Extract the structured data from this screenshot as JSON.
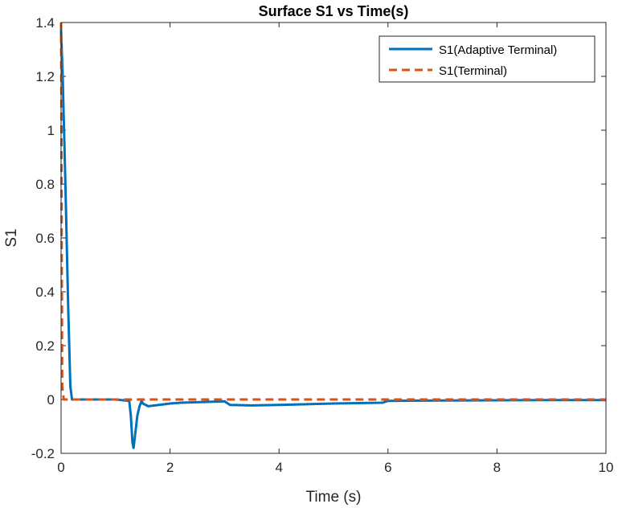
{
  "chart_data": {
    "type": "line",
    "title": "Surface S1 vs Time(s)",
    "xlabel": "Time (s)",
    "ylabel": "S1",
    "xlim": [
      0,
      10
    ],
    "ylim": [
      -0.2,
      1.4
    ],
    "xticks": [
      0,
      2,
      4,
      6,
      8,
      10
    ],
    "xtick_labels": [
      "0",
      "2",
      "4",
      "6",
      "8",
      "10"
    ],
    "yticks": [
      -0.2,
      0,
      0.2,
      0.4,
      0.6,
      0.8,
      1,
      1.2,
      1.4
    ],
    "ytick_labels": [
      "-0.2",
      "0",
      "0.2",
      "0.4",
      "0.6",
      "0.8",
      "1",
      "1.2",
      "1.4"
    ],
    "grid": false,
    "legend_position": "top-right",
    "series": [
      {
        "name": "S1(Adaptive Terminal)",
        "color": "#0072BD",
        "style": "solid",
        "x": [
          0,
          0.03,
          0.08,
          0.13,
          0.17,
          0.2,
          0.3,
          0.5,
          1.0,
          1.25,
          1.28,
          1.31,
          1.33,
          1.36,
          1.4,
          1.44,
          1.48,
          1.5,
          1.6,
          1.8,
          2.0,
          2.2,
          2.5,
          2.8,
          3.0,
          3.1,
          3.5,
          4.0,
          5.0,
          5.9,
          6.0,
          7.0,
          8.0,
          9.0,
          10.0
        ],
        "y": [
          1.37,
          1.2,
          0.8,
          0.35,
          0.05,
          0.0,
          0.0,
          0.0,
          0.0,
          -0.005,
          -0.06,
          -0.16,
          -0.18,
          -0.13,
          -0.06,
          -0.025,
          -0.005,
          -0.015,
          -0.025,
          -0.02,
          -0.015,
          -0.012,
          -0.01,
          -0.008,
          -0.007,
          -0.02,
          -0.022,
          -0.02,
          -0.015,
          -0.012,
          -0.005,
          -0.004,
          -0.003,
          -0.002,
          -0.002
        ]
      },
      {
        "name": "S1(Terminal)",
        "color": "#D95319",
        "style": "dashed",
        "x": [
          0,
          0.005,
          0.01,
          0.02,
          0.05,
          10.0
        ],
        "y": [
          1.4,
          1.2,
          0.6,
          0.05,
          0.0,
          0.0
        ]
      }
    ]
  }
}
